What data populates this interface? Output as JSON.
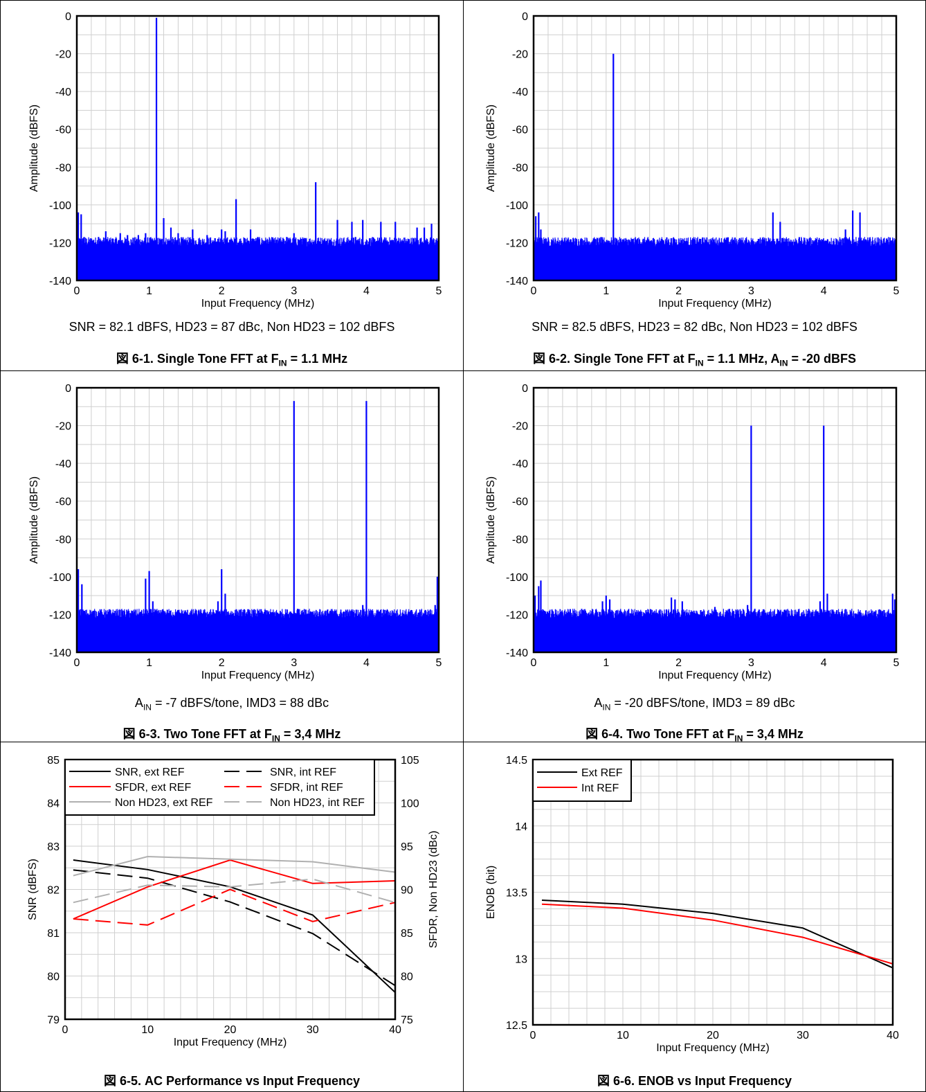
{
  "figures": [
    {
      "note": "SNR = 82.1 dBFS, HD23 = 87 dBc, Non HD23 = 102 dBFS",
      "note_parts": [],
      "caption_parts": [
        {
          "t": "図 6-1. Single Tone FFT at F"
        },
        {
          "t": "IN",
          "sub": true
        },
        {
          "t": " = 1.1 MHz"
        }
      ]
    },
    {
      "note": "SNR = 82.5 dBFS, HD23 = 82 dBc, Non HD23 = 102 dBFS",
      "note_parts": [],
      "caption_parts": [
        {
          "t": "図 6-2. Single Tone FFT at F"
        },
        {
          "t": "IN",
          "sub": true
        },
        {
          "t": " = 1.1 MHz, A"
        },
        {
          "t": "IN",
          "sub": true
        },
        {
          "t": " = -20 dBFS"
        }
      ]
    },
    {
      "note": "",
      "note_parts": [
        {
          "t": "A"
        },
        {
          "t": "IN",
          "sub": true
        },
        {
          "t": " = -7 dBFS/tone, IMD3 = 88 dBc"
        }
      ],
      "caption_parts": [
        {
          "t": "図 6-3. Two Tone FFT at F"
        },
        {
          "t": "IN",
          "sub": true
        },
        {
          "t": " = 3,4 MHz"
        }
      ]
    },
    {
      "note": "",
      "note_parts": [
        {
          "t": "A"
        },
        {
          "t": "IN",
          "sub": true
        },
        {
          "t": " = -20 dBFS/tone, IMD3 = 89 dBc"
        }
      ],
      "caption_parts": [
        {
          "t": "図 6-4. Two Tone FFT at F"
        },
        {
          "t": "IN",
          "sub": true
        },
        {
          "t": " = 3,4 MHz"
        }
      ]
    },
    {
      "note": "",
      "note_parts": [],
      "caption_parts": [
        {
          "t": "図 6-5. AC Performance vs Input Frequency"
        }
      ]
    },
    {
      "note": "",
      "note_parts": [],
      "caption_parts": [
        {
          "t": "図 6-6. ENOB vs Input Frequency"
        }
      ]
    }
  ],
  "chart_data": [
    {
      "type": "line",
      "title": "",
      "xlabel": "Input Frequency (MHz)",
      "ylabel": "Amplitude (dBFS)",
      "xlim": [
        0,
        5
      ],
      "ylim": [
        -140,
        0
      ],
      "xticks": [
        0,
        1,
        2,
        3,
        4,
        5
      ],
      "yticks": [
        0,
        -20,
        -40,
        -60,
        -80,
        -100,
        -120,
        -140
      ],
      "grid": true,
      "noise_floor": -124,
      "series": [
        {
          "color": "#0000ff",
          "spurs": [
            [
              0.02,
              -104
            ],
            [
              0.06,
              -105
            ],
            [
              0.1,
              -117
            ],
            [
              0.2,
              -119
            ],
            [
              0.3,
              -117
            ],
            [
              0.4,
              -114
            ],
            [
              0.6,
              -115
            ],
            [
              0.7,
              -116
            ],
            [
              0.85,
              -116
            ],
            [
              0.95,
              -115
            ],
            [
              1.1,
              -1
            ],
            [
              1.2,
              -107
            ],
            [
              1.3,
              -112
            ],
            [
              1.4,
              -115
            ],
            [
              1.6,
              -113
            ],
            [
              1.7,
              -120
            ],
            [
              1.8,
              -116
            ],
            [
              2.0,
              -113
            ],
            [
              2.05,
              -114
            ],
            [
              2.2,
              -97
            ],
            [
              2.4,
              -113
            ],
            [
              2.5,
              -117
            ],
            [
              2.6,
              -119
            ],
            [
              2.7,
              -118
            ],
            [
              2.8,
              -118
            ],
            [
              2.9,
              -117
            ],
            [
              3.0,
              -115
            ],
            [
              3.1,
              -118
            ],
            [
              3.3,
              -88
            ],
            [
              3.5,
              -119
            ],
            [
              3.6,
              -108
            ],
            [
              3.8,
              -109
            ],
            [
              3.85,
              -117
            ],
            [
              3.95,
              -108
            ],
            [
              4.2,
              -109
            ],
            [
              4.4,
              -109
            ],
            [
              4.5,
              -119
            ],
            [
              4.7,
              -112
            ],
            [
              4.8,
              -112
            ],
            [
              4.9,
              -110
            ]
          ]
        }
      ]
    },
    {
      "type": "line",
      "title": "",
      "xlabel": "Input Frequency (MHz)",
      "ylabel": "Amplitude (dBFS)",
      "xlim": [
        0,
        5
      ],
      "ylim": [
        -140,
        0
      ],
      "xticks": [
        0,
        1,
        2,
        3,
        4,
        5
      ],
      "yticks": [
        0,
        -20,
        -40,
        -60,
        -80,
        -100,
        -120,
        -140
      ],
      "grid": true,
      "noise_floor": -124,
      "series": [
        {
          "color": "#0000ff",
          "spurs": [
            [
              0.03,
              -106
            ],
            [
              0.07,
              -104
            ],
            [
              0.1,
              -113
            ],
            [
              0.15,
              -118
            ],
            [
              0.2,
              -120
            ],
            [
              0.5,
              -121
            ],
            [
              1.1,
              -20
            ],
            [
              1.2,
              -119
            ],
            [
              1.6,
              -121
            ],
            [
              2.2,
              -121
            ],
            [
              2.3,
              -118
            ],
            [
              2.5,
              -120
            ],
            [
              3.1,
              -118
            ],
            [
              3.3,
              -104
            ],
            [
              3.4,
              -109
            ],
            [
              3.6,
              -120
            ],
            [
              4.3,
              -113
            ],
            [
              4.4,
              -103
            ],
            [
              4.5,
              -104
            ],
            [
              4.7,
              -121
            ],
            [
              4.85,
              -120
            ]
          ]
        }
      ]
    },
    {
      "type": "line",
      "title": "",
      "xlabel": "Input Frequency (MHz)",
      "ylabel": "Amplitude (dBFS)",
      "xlim": [
        0,
        5
      ],
      "ylim": [
        -140,
        0
      ],
      "xticks": [
        0,
        1,
        2,
        3,
        4,
        5
      ],
      "yticks": [
        0,
        -20,
        -40,
        -60,
        -80,
        -100,
        -120,
        -140
      ],
      "grid": true,
      "noise_floor": -124,
      "series": [
        {
          "color": "#0000ff",
          "spurs": [
            [
              0.02,
              -96
            ],
            [
              0.07,
              -104
            ],
            [
              0.1,
              -118
            ],
            [
              0.95,
              -101
            ],
            [
              1.0,
              -97
            ],
            [
              1.05,
              -113
            ],
            [
              1.2,
              -119
            ],
            [
              1.95,
              -113
            ],
            [
              2.0,
              -96
            ],
            [
              2.05,
              -109
            ],
            [
              2.6,
              -119
            ],
            [
              2.9,
              -120
            ],
            [
              3.0,
              -7
            ],
            [
              3.05,
              -117
            ],
            [
              3.5,
              -118
            ],
            [
              3.95,
              -115
            ],
            [
              4.0,
              -7
            ],
            [
              4.05,
              -118
            ],
            [
              4.5,
              -119
            ],
            [
              4.95,
              -115
            ],
            [
              4.98,
              -100
            ]
          ]
        }
      ]
    },
    {
      "type": "line",
      "title": "",
      "xlabel": "Input Frequency (MHz)",
      "ylabel": "Amplitude (dBFS)",
      "xlim": [
        0,
        5
      ],
      "ylim": [
        -140,
        0
      ],
      "xticks": [
        0,
        1,
        2,
        3,
        4,
        5
      ],
      "yticks": [
        0,
        -20,
        -40,
        -60,
        -80,
        -100,
        -120,
        -140
      ],
      "grid": true,
      "noise_floor": -124,
      "series": [
        {
          "color": "#0000ff",
          "spurs": [
            [
              0.02,
              -110
            ],
            [
              0.07,
              -105
            ],
            [
              0.1,
              -102
            ],
            [
              0.15,
              -118
            ],
            [
              0.95,
              -113
            ],
            [
              1.0,
              -110
            ],
            [
              1.05,
              -112
            ],
            [
              1.9,
              -111
            ],
            [
              1.95,
              -112
            ],
            [
              2.05,
              -113
            ],
            [
              2.5,
              -116
            ],
            [
              2.95,
              -115
            ],
            [
              3.0,
              -20
            ],
            [
              3.05,
              -117
            ],
            [
              3.95,
              -113
            ],
            [
              4.0,
              -20
            ],
            [
              4.05,
              -109
            ],
            [
              4.5,
              -119
            ],
            [
              4.95,
              -109
            ],
            [
              4.98,
              -112
            ]
          ]
        }
      ]
    },
    {
      "type": "line",
      "title": "",
      "xlabel": "Input Frequency (MHz)",
      "ylabel": "SNR (dBFS)",
      "y2label": "SFDR, Non HD23 (dBc)",
      "xlim": [
        0,
        40
      ],
      "ylim": [
        79,
        85
      ],
      "y2lim": [
        75,
        105
      ],
      "xticks": [
        0,
        10,
        20,
        30,
        40
      ],
      "yticks": [
        79,
        80,
        81,
        82,
        83,
        84,
        85
      ],
      "y2ticks": [
        75,
        80,
        85,
        90,
        95,
        100,
        105
      ],
      "grid": true,
      "legend_position": "top-left",
      "x": [
        1,
        10,
        20,
        30,
        40
      ],
      "series": [
        {
          "name": "SNR, ext REF",
          "axis": "left",
          "color": "#000000",
          "dash": false,
          "values": [
            82.68,
            82.46,
            82.06,
            81.41,
            79.62
          ]
        },
        {
          "name": "SNR, int REF",
          "axis": "left",
          "color": "#000000",
          "dash": true,
          "values": [
            82.45,
            82.26,
            81.71,
            80.98,
            79.78
          ]
        },
        {
          "name": "SFDR, ext REF",
          "axis": "right",
          "color": "#ff0000",
          "dash": false,
          "values": [
            86.6,
            90.3,
            93.4,
            90.7,
            91.0
          ]
        },
        {
          "name": "SFDR, int REF",
          "axis": "right",
          "color": "#ff0000",
          "dash": true,
          "values": [
            86.6,
            85.9,
            90.0,
            86.3,
            88.5
          ]
        },
        {
          "name": "Non HD23, ext REF",
          "axis": "right",
          "color": "#b0b0b0",
          "dash": false,
          "values": [
            91.6,
            93.8,
            93.5,
            93.2,
            92.0
          ]
        },
        {
          "name": "Non HD23, int REF",
          "axis": "right",
          "color": "#b0b0b0",
          "dash": true,
          "values": [
            88.5,
            90.5,
            90.3,
            91.2,
            88.5
          ]
        }
      ]
    },
    {
      "type": "line",
      "title": "",
      "xlabel": "Input Frequency (MHz)",
      "ylabel": "ENOB (bit)",
      "xlim": [
        0,
        40
      ],
      "ylim": [
        12.5,
        14.5
      ],
      "xticks": [
        0,
        10,
        20,
        30,
        40
      ],
      "yticks": [
        12.5,
        13,
        13.5,
        14,
        14.5
      ],
      "grid": true,
      "legend_position": "top-left",
      "x": [
        1,
        10,
        20,
        30,
        40
      ],
      "series": [
        {
          "name": "Ext REF",
          "color": "#000000",
          "values": [
            13.44,
            13.41,
            13.34,
            13.23,
            12.93
          ]
        },
        {
          "name": "Int REF",
          "color": "#ff0000",
          "values": [
            13.41,
            13.38,
            13.29,
            13.16,
            12.96
          ]
        }
      ]
    }
  ]
}
